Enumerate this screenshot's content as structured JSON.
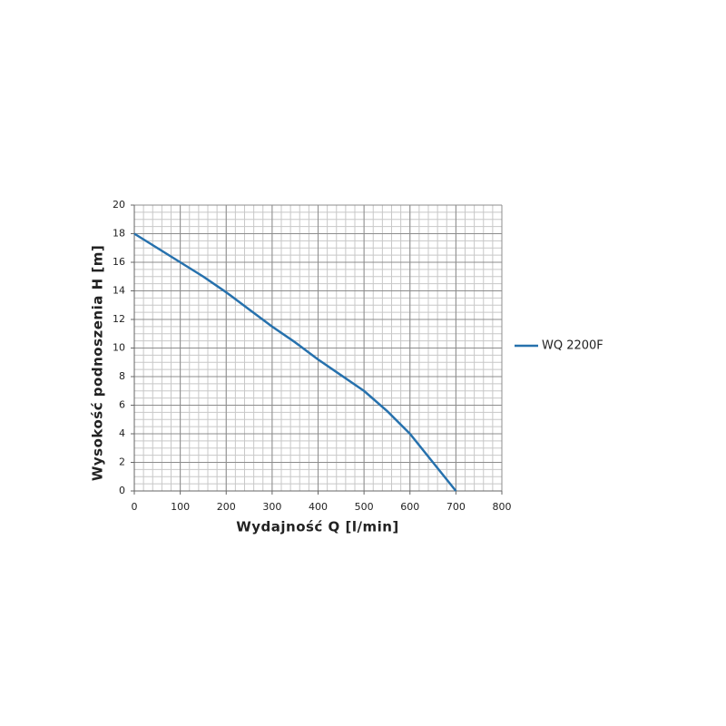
{
  "chart_data": {
    "type": "line",
    "x_label": "Wydajność Q [l/min]",
    "y_label": "Wysokość podnoszenia H [m]",
    "x": [
      0,
      50,
      100,
      150,
      200,
      250,
      300,
      350,
      400,
      450,
      500,
      550,
      600,
      650,
      700
    ],
    "series": [
      {
        "name": "WQ 2200F",
        "color": "#2671ad",
        "values": [
          18,
          17,
          16,
          15,
          13.9,
          12.7,
          11.5,
          10.4,
          9.2,
          8.1,
          7,
          5.6,
          4,
          2,
          0
        ]
      }
    ],
    "xlim": [
      0,
      800
    ],
    "xticks": [
      0,
      100,
      200,
      300,
      400,
      500,
      600,
      700,
      800
    ],
    "ylim": [
      0,
      20
    ],
    "yticks": [
      0,
      2,
      4,
      6,
      8,
      10,
      12,
      14,
      16,
      18,
      20
    ],
    "grid": true,
    "minor_grid": {
      "x": 5,
      "y": 4
    },
    "legend": "right"
  }
}
